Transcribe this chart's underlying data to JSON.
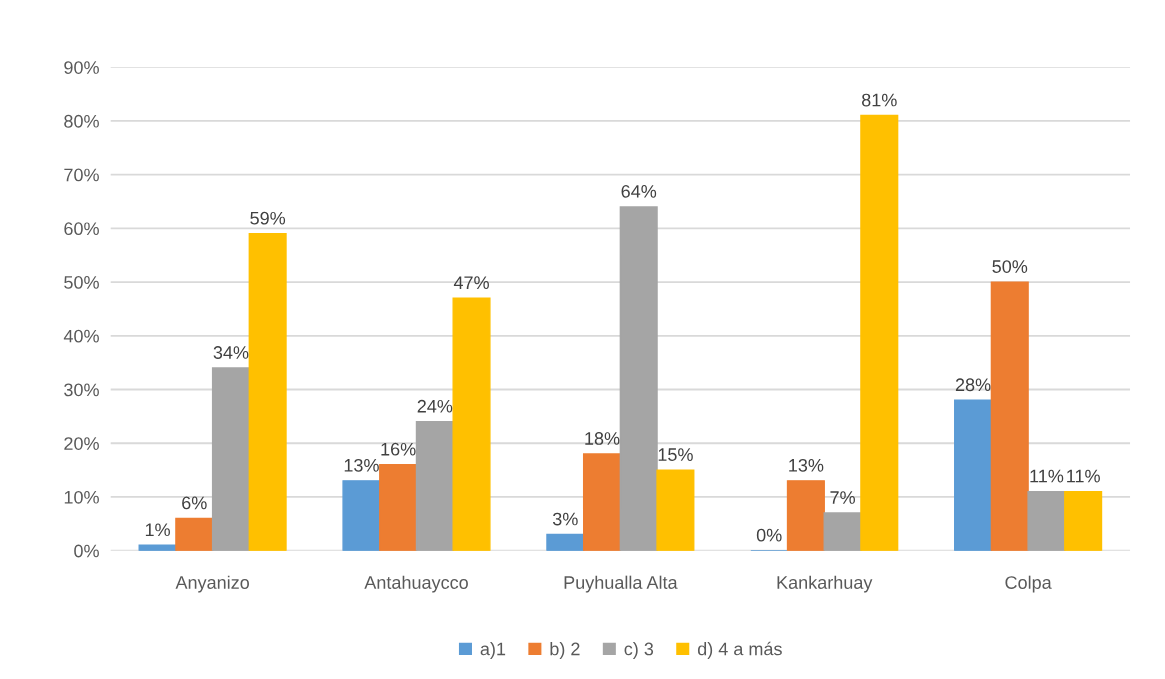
{
  "chart_data": {
    "type": "bar",
    "categories": [
      "Anyanizo",
      "Antahuaycco",
      "Puyhualla Alta",
      "Kankarhuay",
      "Colpa"
    ],
    "series": [
      {
        "name": "a)1",
        "color": "#5b9bd5",
        "values": [
          1,
          13,
          3,
          0,
          28
        ],
        "value_labels": [
          "1%",
          "13%",
          "3%",
          "0%",
          "28%"
        ]
      },
      {
        "name": "b) 2",
        "color": "#ed7d31",
        "values": [
          6,
          16,
          18,
          13,
          50
        ],
        "value_labels": [
          "6%",
          "16%",
          "18%",
          "13%",
          "50%"
        ]
      },
      {
        "name": "c) 3",
        "color": "#a5a5a5",
        "values": [
          34,
          24,
          64,
          7,
          11
        ],
        "value_labels": [
          "34%",
          "24%",
          "64%",
          "7%",
          "11%"
        ]
      },
      {
        "name": "d) 4 a más",
        "color": "#ffc000",
        "values": [
          59,
          47,
          15,
          81,
          11
        ],
        "value_labels": [
          "59%",
          "47%",
          "15%",
          "81%",
          "11%"
        ]
      }
    ],
    "ylim": [
      0,
      90
    ],
    "yticks": [
      {
        "value": 0,
        "label": "0%"
      },
      {
        "value": 10,
        "label": "10%"
      },
      {
        "value": 20,
        "label": "20%"
      },
      {
        "value": 30,
        "label": "30%"
      },
      {
        "value": 40,
        "label": "40%"
      },
      {
        "value": 50,
        "label": "50%"
      },
      {
        "value": 60,
        "label": "60%"
      },
      {
        "value": 70,
        "label": "70%"
      },
      {
        "value": 80,
        "label": "80%"
      },
      {
        "value": 90,
        "label": "90%"
      }
    ],
    "grid": "y",
    "legend": "bottom"
  }
}
